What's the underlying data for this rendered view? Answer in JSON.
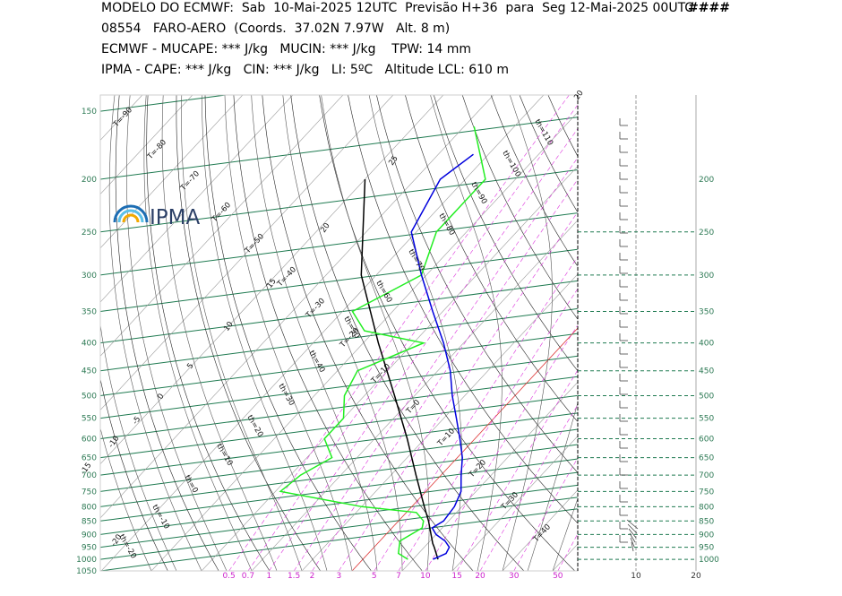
{
  "header": {
    "line1": "MODELO DO ECMWF:  Sab  10-Mai-2025 12UTC  Previsão H+36  para  Seg 12-Mai-2025 00UTC",
    "flag": "####",
    "line2": "08554   FARO-AERO  (Coords.  37.02N 7.97W   Alt. 8 m)",
    "line3": "ECMWF - MUCAPE: *** J/kg   MUCIN: *** J/kg    TPW: 14 mm",
    "line4": "IPMA - CAPE: *** J/kg   CIN: *** J/kg   LI: 5ºC   Altitude LCL: 610 m"
  },
  "logo": {
    "text": "IPMA"
  },
  "colors": {
    "isobar": "#1e7a50",
    "isotherm": "#9a9a9a",
    "dry_adiabat": "#222222",
    "moist_adiabat": "#555555",
    "mixing_ratio": "#dd33dd",
    "temperature": "#0000dd",
    "dewpoint": "#22ee22",
    "parcel": "#000000",
    "zero_isotherm": "#dd3333"
  },
  "chart_data": {
    "type": "skew-t",
    "pressure_levels_left": [
      "150",
      "200",
      "250",
      "300",
      "350",
      "400",
      "450",
      "500",
      "550",
      "600",
      "650",
      "700",
      "750",
      "800",
      "850",
      "900",
      "950",
      "1000",
      "1050"
    ],
    "pressure_levels_right": [
      "200",
      "250",
      "300",
      "350",
      "400",
      "450",
      "500",
      "550",
      "600",
      "650",
      "700",
      "750",
      "800",
      "850",
      "900",
      "950",
      "1000"
    ],
    "mixing_ratio_labels": [
      "0.5",
      "0.7",
      "1",
      "1.5",
      "2",
      "3",
      "5",
      "7",
      "10",
      "15",
      "20",
      "30",
      "50"
    ],
    "wind_axis_labels": [
      "10",
      "20"
    ],
    "isotherm_labels": [
      "T=-90",
      "T=-80",
      "T=-70",
      "T=-60",
      "T=-50",
      "T=-40",
      "T=-30",
      "T=-20",
      "T=-10",
      "T=0",
      "T=10",
      "T=20",
      "T=30",
      "T=40"
    ],
    "dry_adiabat_labels": [
      "th=110",
      "th=100",
      "th=90",
      "th=80",
      "th=70",
      "th=60",
      "th=50",
      "th=40",
      "th=30",
      "th=20",
      "th=10",
      "th=0",
      "th=-10",
      "th=-20"
    ],
    "moist_adiabat_labels": [
      "20",
      "25",
      "20",
      "15",
      "10",
      "5",
      "0",
      "-5",
      "-10",
      "-15",
      "-20"
    ],
    "temperature_profile": {
      "name": "T",
      "pressure": [
        1000,
        975,
        950,
        925,
        900,
        875,
        850,
        800,
        750,
        700,
        650,
        600,
        550,
        500,
        450,
        400,
        350,
        300,
        250,
        200,
        180
      ],
      "temp_c": [
        14,
        15.5,
        15,
        13,
        10,
        8,
        9,
        8.5,
        7,
        4,
        1,
        -3,
        -7.5,
        -12.5,
        -17.5,
        -24,
        -32,
        -41,
        -51,
        -55,
        -53
      ]
    },
    "dewpoint_profile": {
      "name": "Td",
      "pressure": [
        1000,
        975,
        950,
        925,
        900,
        875,
        850,
        820,
        800,
        750,
        700,
        650,
        600,
        550,
        500,
        450,
        400,
        380,
        350,
        300,
        250,
        200,
        160
      ],
      "dewpoint_c": [
        9,
        6,
        5,
        4,
        5,
        6,
        5,
        2,
        -10,
        -29,
        -28,
        -25,
        -30,
        -30,
        -34,
        -36,
        -28,
        -42,
        -48,
        -41,
        -46,
        -46,
        -58
      ]
    },
    "parcel_profile": {
      "pressure": [
        1000,
        950,
        935,
        900,
        850,
        800,
        700,
        600,
        500,
        400,
        300,
        200
      ],
      "temp_c": [
        15,
        12,
        11,
        9,
        6,
        2.5,
        -5,
        -13.5,
        -24,
        -37,
        -53,
        -70
      ]
    }
  }
}
